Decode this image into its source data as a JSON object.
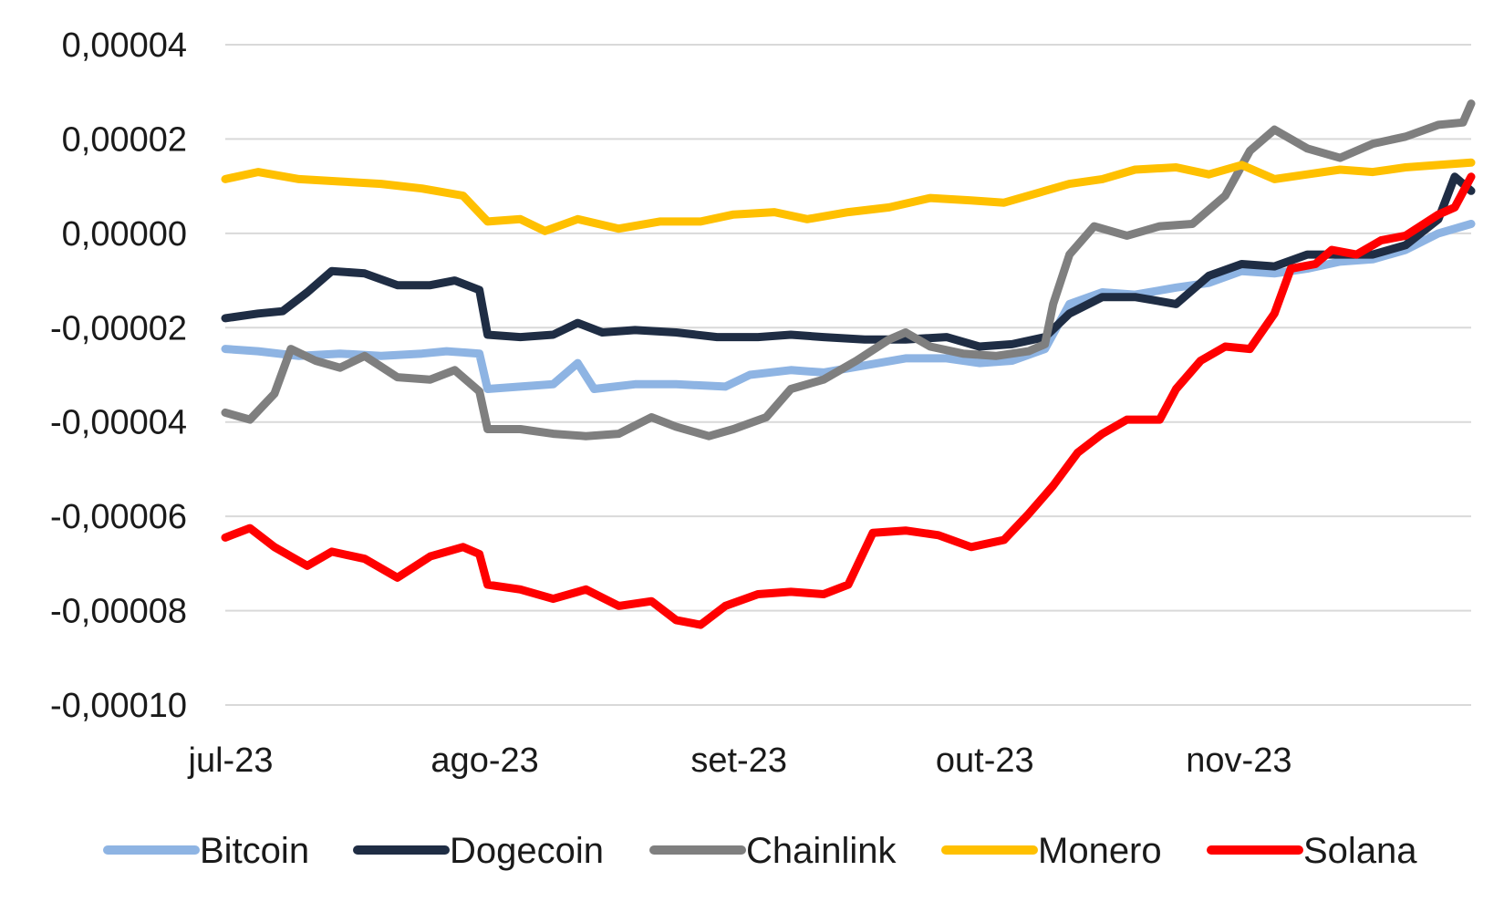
{
  "chart_data": {
    "type": "line",
    "title": "",
    "xlabel": "",
    "ylabel": "",
    "ylim": [
      -0.0001,
      4e-05
    ],
    "y_ticks": [
      4e-05,
      2e-05,
      0.0,
      -2e-05,
      -4e-05,
      -6e-05,
      -8e-05,
      -0.0001
    ],
    "y_tick_labels": [
      "0,00004",
      "0,00002",
      "0,00000",
      "-0,00002",
      "-0,00004",
      "-0,00006",
      "-0,00008",
      "-0,00010"
    ],
    "x_tick_labels": [
      "jul-23",
      "ago-23",
      "set-23",
      "out-23",
      "nov-23"
    ],
    "x_tick_dates": [
      "2023-07-01",
      "2023-08-01",
      "2023-09-01",
      "2023-10-01",
      "2023-11-01"
    ],
    "x_range": [
      "2023-07-01",
      "2023-11-30"
    ],
    "grid": "horizontal",
    "legend_position": "bottom",
    "series": [
      {
        "name": "Bitcoin",
        "color": "#8eb4e3",
        "points": [
          [
            "2023-07-01",
            -2.45e-05
          ],
          [
            "2023-07-05",
            -2.5e-05
          ],
          [
            "2023-07-10",
            -2.6e-05
          ],
          [
            "2023-07-15",
            -2.55e-05
          ],
          [
            "2023-07-20",
            -2.6e-05
          ],
          [
            "2023-07-25",
            -2.55e-05
          ],
          [
            "2023-07-28",
            -2.5e-05
          ],
          [
            "2023-08-01",
            -2.55e-05
          ],
          [
            "2023-08-02",
            -3.3e-05
          ],
          [
            "2023-08-06",
            -3.25e-05
          ],
          [
            "2023-08-10",
            -3.2e-05
          ],
          [
            "2023-08-13",
            -2.75e-05
          ],
          [
            "2023-08-15",
            -3.3e-05
          ],
          [
            "2023-08-20",
            -3.2e-05
          ],
          [
            "2023-08-25",
            -3.2e-05
          ],
          [
            "2023-08-31",
            -3.25e-05
          ],
          [
            "2023-09-03",
            -3e-05
          ],
          [
            "2023-09-08",
            -2.9e-05
          ],
          [
            "2023-09-12",
            -2.95e-05
          ],
          [
            "2023-09-17",
            -2.8e-05
          ],
          [
            "2023-09-22",
            -2.65e-05
          ],
          [
            "2023-09-27",
            -2.65e-05
          ],
          [
            "2023-10-01",
            -2.75e-05
          ],
          [
            "2023-10-05",
            -2.7e-05
          ],
          [
            "2023-10-09",
            -2.45e-05
          ],
          [
            "2023-10-12",
            -1.5e-05
          ],
          [
            "2023-10-16",
            -1.25e-05
          ],
          [
            "2023-10-20",
            -1.3e-05
          ],
          [
            "2023-10-25",
            -1.15e-05
          ],
          [
            "2023-10-29",
            -1.05e-05
          ],
          [
            "2023-11-02",
            -8e-06
          ],
          [
            "2023-11-06",
            -8.5e-06
          ],
          [
            "2023-11-10",
            -7.5e-06
          ],
          [
            "2023-11-14",
            -6e-06
          ],
          [
            "2023-11-18",
            -5.5e-06
          ],
          [
            "2023-11-22",
            -3.5e-06
          ],
          [
            "2023-11-26",
            0.0
          ],
          [
            "2023-11-30",
            2e-06
          ]
        ]
      },
      {
        "name": "Dogecoin",
        "color": "#1f2d44",
        "points": [
          [
            "2023-07-01",
            -1.8e-05
          ],
          [
            "2023-07-05",
            -1.7e-05
          ],
          [
            "2023-07-08",
            -1.65e-05
          ],
          [
            "2023-07-11",
            -1.25e-05
          ],
          [
            "2023-07-14",
            -8e-06
          ],
          [
            "2023-07-18",
            -8.5e-06
          ],
          [
            "2023-07-22",
            -1.1e-05
          ],
          [
            "2023-07-26",
            -1.1e-05
          ],
          [
            "2023-07-29",
            -1e-05
          ],
          [
            "2023-08-01",
            -1.2e-05
          ],
          [
            "2023-08-02",
            -2.15e-05
          ],
          [
            "2023-08-06",
            -2.2e-05
          ],
          [
            "2023-08-10",
            -2.15e-05
          ],
          [
            "2023-08-13",
            -1.9e-05
          ],
          [
            "2023-08-16",
            -2.1e-05
          ],
          [
            "2023-08-20",
            -2.05e-05
          ],
          [
            "2023-08-25",
            -2.1e-05
          ],
          [
            "2023-08-30",
            -2.2e-05
          ],
          [
            "2023-09-04",
            -2.2e-05
          ],
          [
            "2023-09-08",
            -2.15e-05
          ],
          [
            "2023-09-12",
            -2.2e-05
          ],
          [
            "2023-09-17",
            -2.25e-05
          ],
          [
            "2023-09-22",
            -2.25e-05
          ],
          [
            "2023-09-27",
            -2.2e-05
          ],
          [
            "2023-10-01",
            -2.4e-05
          ],
          [
            "2023-10-05",
            -2.35e-05
          ],
          [
            "2023-10-09",
            -2.2e-05
          ],
          [
            "2023-10-12",
            -1.7e-05
          ],
          [
            "2023-10-16",
            -1.35e-05
          ],
          [
            "2023-10-20",
            -1.35e-05
          ],
          [
            "2023-10-25",
            -1.5e-05
          ],
          [
            "2023-10-29",
            -9e-06
          ],
          [
            "2023-11-02",
            -6.5e-06
          ],
          [
            "2023-11-06",
            -7e-06
          ],
          [
            "2023-11-10",
            -4.5e-06
          ],
          [
            "2023-11-14",
            -4.5e-06
          ],
          [
            "2023-11-18",
            -4.5e-06
          ],
          [
            "2023-11-22",
            -2.5e-06
          ],
          [
            "2023-11-26",
            3e-06
          ],
          [
            "2023-11-28",
            1.2e-05
          ],
          [
            "2023-11-30",
            9e-06
          ]
        ]
      },
      {
        "name": "Chainlink",
        "color": "#7f7f7f",
        "points": [
          [
            "2023-07-01",
            -3.8e-05
          ],
          [
            "2023-07-04",
            -3.95e-05
          ],
          [
            "2023-07-07",
            -3.4e-05
          ],
          [
            "2023-07-09",
            -2.45e-05
          ],
          [
            "2023-07-12",
            -2.7e-05
          ],
          [
            "2023-07-15",
            -2.85e-05
          ],
          [
            "2023-07-18",
            -2.6e-05
          ],
          [
            "2023-07-22",
            -3.05e-05
          ],
          [
            "2023-07-26",
            -3.1e-05
          ],
          [
            "2023-07-29",
            -2.9e-05
          ],
          [
            "2023-08-01",
            -3.35e-05
          ],
          [
            "2023-08-02",
            -4.15e-05
          ],
          [
            "2023-08-06",
            -4.15e-05
          ],
          [
            "2023-08-10",
            -4.25e-05
          ],
          [
            "2023-08-14",
            -4.3e-05
          ],
          [
            "2023-08-18",
            -4.25e-05
          ],
          [
            "2023-08-22",
            -3.9e-05
          ],
          [
            "2023-08-25",
            -4.1e-05
          ],
          [
            "2023-08-29",
            -4.3e-05
          ],
          [
            "2023-09-01",
            -4.15e-05
          ],
          [
            "2023-09-05",
            -3.9e-05
          ],
          [
            "2023-09-08",
            -3.3e-05
          ],
          [
            "2023-09-12",
            -3.1e-05
          ],
          [
            "2023-09-16",
            -2.7e-05
          ],
          [
            "2023-09-20",
            -2.25e-05
          ],
          [
            "2023-09-22",
            -2.1e-05
          ],
          [
            "2023-09-25",
            -2.4e-05
          ],
          [
            "2023-09-29",
            -2.55e-05
          ],
          [
            "2023-10-03",
            -2.6e-05
          ],
          [
            "2023-10-07",
            -2.5e-05
          ],
          [
            "2023-10-09",
            -2.35e-05
          ],
          [
            "2023-10-10",
            -1.5e-05
          ],
          [
            "2023-10-12",
            -4.5e-06
          ],
          [
            "2023-10-15",
            1.5e-06
          ],
          [
            "2023-10-19",
            -5e-07
          ],
          [
            "2023-10-23",
            1.5e-06
          ],
          [
            "2023-10-27",
            2e-06
          ],
          [
            "2023-10-31",
            8e-06
          ],
          [
            "2023-11-03",
            1.75e-05
          ],
          [
            "2023-11-06",
            2.2e-05
          ],
          [
            "2023-11-10",
            1.8e-05
          ],
          [
            "2023-11-14",
            1.6e-05
          ],
          [
            "2023-11-18",
            1.9e-05
          ],
          [
            "2023-11-22",
            2.05e-05
          ],
          [
            "2023-11-26",
            2.3e-05
          ],
          [
            "2023-11-29",
            2.35e-05
          ],
          [
            "2023-11-30",
            2.75e-05
          ]
        ]
      },
      {
        "name": "Monero",
        "color": "#ffc000",
        "points": [
          [
            "2023-07-01",
            1.15e-05
          ],
          [
            "2023-07-05",
            1.3e-05
          ],
          [
            "2023-07-10",
            1.15e-05
          ],
          [
            "2023-07-15",
            1.1e-05
          ],
          [
            "2023-07-20",
            1.05e-05
          ],
          [
            "2023-07-25",
            9.5e-06
          ],
          [
            "2023-07-30",
            8e-06
          ],
          [
            "2023-08-02",
            2.5e-06
          ],
          [
            "2023-08-06",
            3e-06
          ],
          [
            "2023-08-09",
            5e-07
          ],
          [
            "2023-08-13",
            3e-06
          ],
          [
            "2023-08-18",
            1e-06
          ],
          [
            "2023-08-23",
            2.5e-06
          ],
          [
            "2023-08-28",
            2.5e-06
          ],
          [
            "2023-09-01",
            4e-06
          ],
          [
            "2023-09-06",
            4.5e-06
          ],
          [
            "2023-09-10",
            3e-06
          ],
          [
            "2023-09-15",
            4.5e-06
          ],
          [
            "2023-09-20",
            5.5e-06
          ],
          [
            "2023-09-25",
            7.5e-06
          ],
          [
            "2023-09-30",
            7e-06
          ],
          [
            "2023-10-04",
            6.5e-06
          ],
          [
            "2023-10-08",
            8.5e-06
          ],
          [
            "2023-10-12",
            1.05e-05
          ],
          [
            "2023-10-16",
            1.15e-05
          ],
          [
            "2023-10-20",
            1.35e-05
          ],
          [
            "2023-10-25",
            1.4e-05
          ],
          [
            "2023-10-29",
            1.25e-05
          ],
          [
            "2023-11-02",
            1.45e-05
          ],
          [
            "2023-11-06",
            1.15e-05
          ],
          [
            "2023-11-10",
            1.25e-05
          ],
          [
            "2023-11-14",
            1.35e-05
          ],
          [
            "2023-11-18",
            1.3e-05
          ],
          [
            "2023-11-22",
            1.4e-05
          ],
          [
            "2023-11-26",
            1.45e-05
          ],
          [
            "2023-11-30",
            1.5e-05
          ]
        ]
      },
      {
        "name": "Solana",
        "color": "#ff0000",
        "points": [
          [
            "2023-07-01",
            -6.45e-05
          ],
          [
            "2023-07-04",
            -6.25e-05
          ],
          [
            "2023-07-07",
            -6.65e-05
          ],
          [
            "2023-07-11",
            -7.05e-05
          ],
          [
            "2023-07-14",
            -6.75e-05
          ],
          [
            "2023-07-18",
            -6.9e-05
          ],
          [
            "2023-07-22",
            -7.3e-05
          ],
          [
            "2023-07-26",
            -6.85e-05
          ],
          [
            "2023-07-30",
            -6.65e-05
          ],
          [
            "2023-08-01",
            -6.8e-05
          ],
          [
            "2023-08-02",
            -7.45e-05
          ],
          [
            "2023-08-06",
            -7.55e-05
          ],
          [
            "2023-08-10",
            -7.75e-05
          ],
          [
            "2023-08-14",
            -7.55e-05
          ],
          [
            "2023-08-18",
            -7.9e-05
          ],
          [
            "2023-08-22",
            -7.8e-05
          ],
          [
            "2023-08-25",
            -8.2e-05
          ],
          [
            "2023-08-28",
            -8.3e-05
          ],
          [
            "2023-08-31",
            -7.9e-05
          ],
          [
            "2023-09-04",
            -7.65e-05
          ],
          [
            "2023-09-08",
            -7.6e-05
          ],
          [
            "2023-09-12",
            -7.65e-05
          ],
          [
            "2023-09-15",
            -7.45e-05
          ],
          [
            "2023-09-18",
            -6.35e-05
          ],
          [
            "2023-09-22",
            -6.3e-05
          ],
          [
            "2023-09-26",
            -6.4e-05
          ],
          [
            "2023-09-30",
            -6.65e-05
          ],
          [
            "2023-10-04",
            -6.5e-05
          ],
          [
            "2023-10-07",
            -5.95e-05
          ],
          [
            "2023-10-10",
            -5.35e-05
          ],
          [
            "2023-10-13",
            -4.65e-05
          ],
          [
            "2023-10-16",
            -4.25e-05
          ],
          [
            "2023-10-19",
            -3.95e-05
          ],
          [
            "2023-10-23",
            -3.95e-05
          ],
          [
            "2023-10-25",
            -3.3e-05
          ],
          [
            "2023-10-28",
            -2.7e-05
          ],
          [
            "2023-10-31",
            -2.4e-05
          ],
          [
            "2023-11-03",
            -2.45e-05
          ],
          [
            "2023-11-06",
            -1.7e-05
          ],
          [
            "2023-11-08",
            -7.5e-06
          ],
          [
            "2023-11-11",
            -6.5e-06
          ],
          [
            "2023-11-13",
            -3.5e-06
          ],
          [
            "2023-11-16",
            -4.5e-06
          ],
          [
            "2023-11-19",
            -1.5e-06
          ],
          [
            "2023-11-22",
            -5e-07
          ],
          [
            "2023-11-26",
            4e-06
          ],
          [
            "2023-11-28",
            5.5e-06
          ],
          [
            "2023-11-30",
            1.2e-05
          ]
        ]
      }
    ]
  }
}
